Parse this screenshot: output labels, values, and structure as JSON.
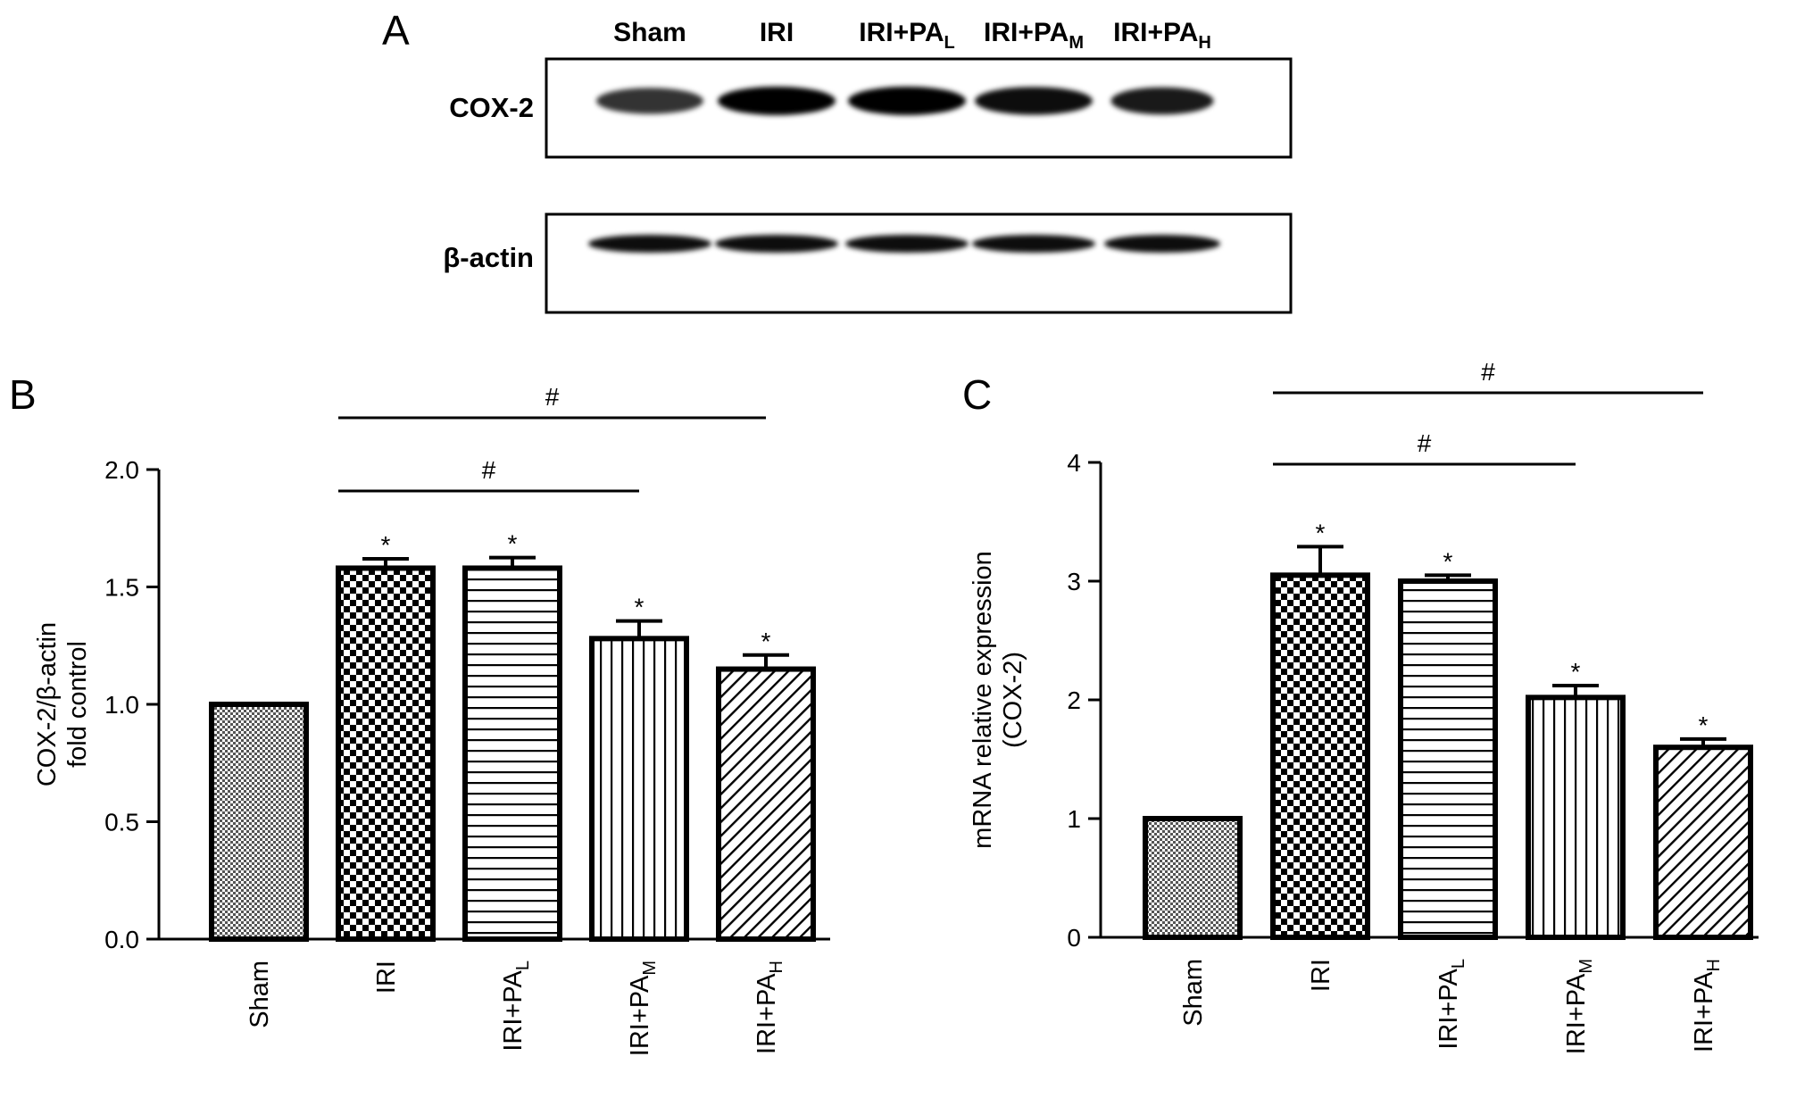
{
  "panel_a": {
    "label": "A",
    "lanes": [
      {
        "base": "Sham",
        "sub": ""
      },
      {
        "base": "IRI",
        "sub": ""
      },
      {
        "base": "IRI+PA",
        "sub": "L"
      },
      {
        "base": "IRI+PA",
        "sub": "M"
      },
      {
        "base": "IRI+PA",
        "sub": "H"
      }
    ],
    "blots": [
      {
        "label": "COX-2",
        "band_intensity": [
          0.8,
          1.0,
          1.0,
          0.95,
          0.9
        ]
      },
      {
        "label": "β-actin",
        "band_intensity": [
          0.95,
          0.95,
          0.95,
          0.95,
          0.95
        ]
      }
    ]
  },
  "chart_data": [
    {
      "panel": "B",
      "type": "bar",
      "categories": [
        {
          "base": "Sham",
          "sub": ""
        },
        {
          "base": "IRI",
          "sub": ""
        },
        {
          "base": "IRI+PA",
          "sub": "L"
        },
        {
          "base": "IRI+PA",
          "sub": "M"
        },
        {
          "base": "IRI+PA",
          "sub": "H"
        }
      ],
      "values": [
        1.0,
        1.58,
        1.58,
        1.28,
        1.15
      ],
      "errors": [
        0.0,
        0.04,
        0.045,
        0.075,
        0.06
      ],
      "marks": [
        "",
        "*",
        "*",
        "*",
        "*"
      ],
      "patterns": [
        "fine-check",
        "checker",
        "horizontal",
        "vertical",
        "diagonal"
      ],
      "ylabel_lines": [
        "COX-2/β-actin",
        "fold control"
      ],
      "ylim": [
        0,
        2.0
      ],
      "yticks": [
        "0.0",
        "0.5",
        "1.0",
        "1.5",
        "2.0"
      ],
      "brackets": [
        {
          "from": 1,
          "to": 4,
          "label": "#"
        },
        {
          "from": 1,
          "to": 3,
          "label": "#"
        }
      ]
    },
    {
      "panel": "C",
      "type": "bar",
      "categories": [
        {
          "base": "Sham",
          "sub": ""
        },
        {
          "base": "IRI",
          "sub": ""
        },
        {
          "base": "IRI+PA",
          "sub": "L"
        },
        {
          "base": "IRI+PA",
          "sub": "M"
        },
        {
          "base": "IRI+PA",
          "sub": "H"
        }
      ],
      "values": [
        1.0,
        3.05,
        3.0,
        2.02,
        1.6
      ],
      "errors": [
        0.0,
        0.24,
        0.05,
        0.1,
        0.07
      ],
      "marks": [
        "",
        "*",
        "*",
        "*",
        "*"
      ],
      "patterns": [
        "fine-check",
        "checker",
        "horizontal",
        "vertical",
        "diagonal"
      ],
      "ylabel_lines": [
        "mRNA relative expression",
        "(COX-2)"
      ],
      "ylim": [
        0,
        4
      ],
      "yticks": [
        "0",
        "1",
        "2",
        "3",
        "4"
      ],
      "brackets": [
        {
          "from": 1,
          "to": 4,
          "label": "#"
        },
        {
          "from": 1,
          "to": 3,
          "label": "#"
        }
      ]
    }
  ]
}
